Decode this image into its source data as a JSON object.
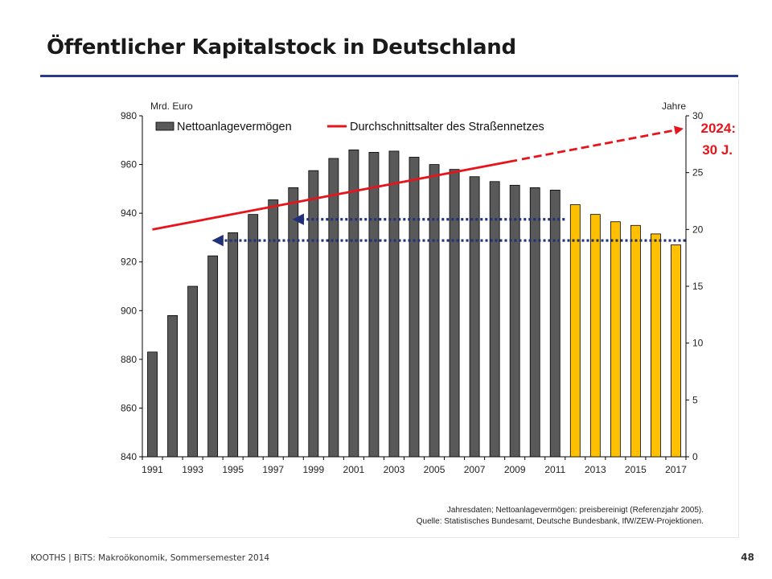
{
  "slide": {
    "title": "Öffentlicher Kapitalstock in Deutschland",
    "footer": "KOOTHS | BiTS: Makroökonomik, Sommersemester 2014",
    "page_number": "48"
  },
  "chart_data": {
    "type": "bar",
    "left_axis_label": "Mrd. Euro",
    "right_axis_label": "Jahre",
    "ylim_left": [
      840,
      980
    ],
    "yticks_left": [
      840,
      860,
      880,
      900,
      920,
      940,
      960,
      980
    ],
    "ylim_right": [
      0,
      30
    ],
    "yticks_right": [
      0,
      5,
      10,
      15,
      20,
      25,
      30
    ],
    "xtick_labels": [
      "1991",
      "1993",
      "1995",
      "1997",
      "1999",
      "2001",
      "2003",
      "2005",
      "2007",
      "2009",
      "2011",
      "2013",
      "2015",
      "2017"
    ],
    "categories": [
      1991,
      1992,
      1993,
      1994,
      1995,
      1996,
      1997,
      1998,
      1999,
      2000,
      2001,
      2002,
      2003,
      2004,
      2005,
      2006,
      2007,
      2008,
      2009,
      2010,
      2011,
      2012,
      2013,
      2014,
      2015,
      2016,
      2017
    ],
    "series": [
      {
        "name": "Nettoanlagevermögen",
        "axis": "left",
        "values": [
          883,
          898,
          910,
          922.5,
          932,
          939.5,
          945.5,
          950.5,
          957.5,
          962.5,
          966,
          965,
          965.5,
          963,
          960,
          958,
          955,
          953,
          951.5,
          950.5,
          949.5,
          943.5,
          939.5,
          936.5,
          935,
          931.5,
          927
        ],
        "color_historical": "#595959",
        "color_projection": "#ffc000",
        "projection_from": 2012
      },
      {
        "name": "Durchschnittsalter des Straßennetzes",
        "axis": "right",
        "x": [
          1991,
          2017
        ],
        "y": [
          20.0,
          28.8
        ],
        "solid_until": 2009,
        "color": "#e8141b"
      }
    ],
    "reference_arrows": [
      {
        "from_year": 2011,
        "to_year": 1998,
        "value": 937.5
      },
      {
        "from_year": 2017,
        "to_year": 1994,
        "value": 928.8
      }
    ],
    "annotation": {
      "line1": "2024:",
      "line2": "30 J.",
      "color": "#e8141b"
    },
    "note_line1": "Jahresdaten; Nettoanlagevermögen: preisbereinigt (Referenzjahr 2005).",
    "note_line2": "Quelle: Statistisches Bundesamt, Deutsche Bundesbank, IfW/ZEW-Projektionen."
  }
}
